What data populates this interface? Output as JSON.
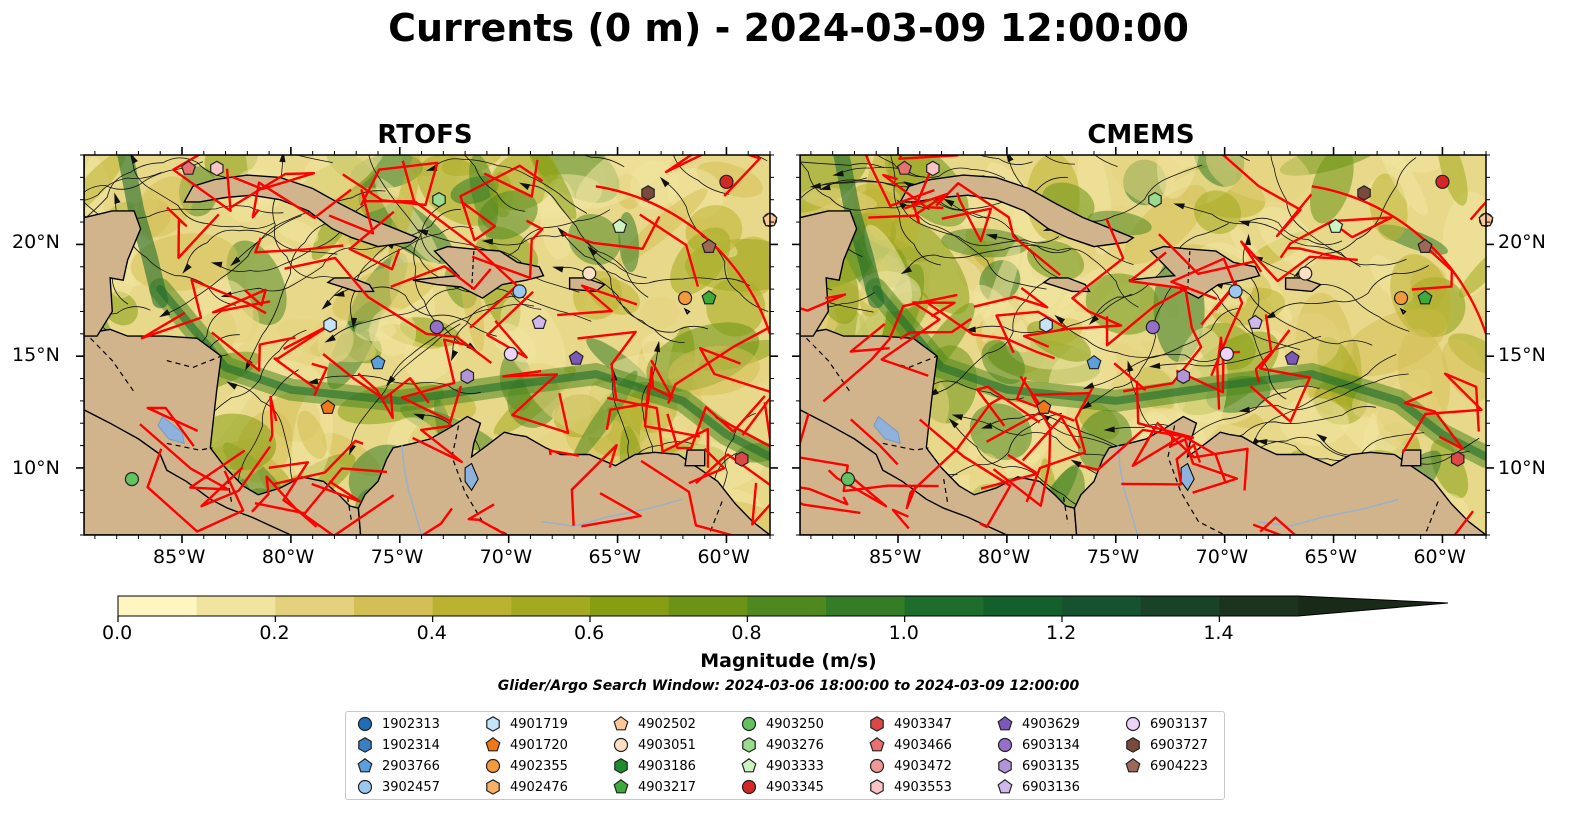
{
  "title": "Currents (0 m) - 2024-03-09 12:00:00",
  "panels": [
    {
      "title": "RTOFS"
    },
    {
      "title": "CMEMS"
    }
  ],
  "colors": {
    "land": "#d2b48c",
    "lake": "#8fb2dc",
    "tracks": "#ff0000",
    "ocean_low": "#fff7bc",
    "ocean_mid": "#8aa31c",
    "ocean_high": "#0f5a2b"
  },
  "colorbar": {
    "label": "Magnitude (m/s)",
    "ticks": [
      "0.0",
      "0.2",
      "0.4",
      "0.6",
      "0.8",
      "1.0",
      "1.2",
      "1.4"
    ],
    "range": [
      0.0,
      1.5
    ],
    "extend": "max",
    "bin_colors": [
      "#fff5c0",
      "#f1e3a0",
      "#e4d17e",
      "#d4bf55",
      "#bcb232",
      "#a3aa1f",
      "#879e12",
      "#6c9314",
      "#508820",
      "#357c26",
      "#1f6d2c",
      "#14602d",
      "#175230",
      "#1a4229",
      "#1c3320",
      "#1a2a18"
    ]
  },
  "search_window": "Glider/Argo Search Window: 2024-03-06 18:00:00 to 2024-03-09 12:00:00",
  "chart_data": {
    "type": "map",
    "lon_range": [
      -89.5,
      -58
    ],
    "lat_range": [
      7,
      24
    ],
    "x_ticks": [
      "85°W",
      "80°W",
      "75°W",
      "70°W",
      "65°W",
      "60°W"
    ],
    "y_ticks": [
      "20°N",
      "15°N",
      "10°N"
    ],
    "floats": [
      {
        "id": "1902313",
        "marker": "circle",
        "color": "#1f6db5",
        "lon": -58,
        "lat": 21.1
      },
      {
        "id": "1902314",
        "marker": "hexagon",
        "color": "#3a7fc4"
      },
      {
        "id": "2903766",
        "marker": "pentagon",
        "color": "#5a9fde",
        "lon": -76,
        "lat": 14.7
      },
      {
        "id": "3902457",
        "marker": "circle",
        "color": "#9cc8f0",
        "lon": -69.5,
        "lat": 17.9
      },
      {
        "id": "4901719",
        "marker": "hexagon",
        "color": "#c6e4f8",
        "lon": -78.2,
        "lat": 16.4
      },
      {
        "id": "4901720",
        "marker": "pentagon",
        "color": "#f07818",
        "lon": -78.3,
        "lat": 12.7
      },
      {
        "id": "4902355",
        "marker": "circle",
        "color": "#f59a3c",
        "lon": -61.9,
        "lat": 17.6
      },
      {
        "id": "4902476",
        "marker": "hexagon",
        "color": "#f8b068"
      },
      {
        "id": "4902502",
        "marker": "pentagon",
        "color": "#fbc89a",
        "lon": -58,
        "lat": 21.1
      },
      {
        "id": "4903051",
        "marker": "circle",
        "color": "#fde0c4",
        "lon": -66.3,
        "lat": 18.7
      },
      {
        "id": "4903186",
        "marker": "hexagon",
        "color": "#1f8c2c"
      },
      {
        "id": "4903217",
        "marker": "pentagon",
        "color": "#3daa3a",
        "lon": -60.8,
        "lat": 17.6
      },
      {
        "id": "4903250",
        "marker": "circle",
        "color": "#64c060",
        "lon": -87.3,
        "lat": 9.5
      },
      {
        "id": "4903276",
        "marker": "hexagon",
        "color": "#98dc8e",
        "lon": -73.2,
        "lat": 22.0
      },
      {
        "id": "4903333",
        "marker": "pentagon",
        "color": "#cdf3c3",
        "lon": -64.9,
        "lat": 20.8
      },
      {
        "id": "4903345",
        "marker": "circle",
        "color": "#d42828",
        "lon": -60.0,
        "lat": 22.8
      },
      {
        "id": "4903347",
        "marker": "hexagon",
        "color": "#dc4848",
        "lon": -59.3,
        "lat": 10.4
      },
      {
        "id": "4903466",
        "marker": "pentagon",
        "color": "#e87070",
        "lon": -84.7,
        "lat": 23.4
      },
      {
        "id": "4903472",
        "marker": "circle",
        "color": "#f09898"
      },
      {
        "id": "4903553",
        "marker": "hexagon",
        "color": "#f8c4c4",
        "lon": -83.4,
        "lat": 23.4
      },
      {
        "id": "4903629",
        "marker": "pentagon",
        "color": "#7c58b8",
        "lon": -66.9,
        "lat": 14.9
      },
      {
        "id": "6903134",
        "marker": "circle",
        "color": "#9670c8",
        "lon": -73.3,
        "lat": 16.3
      },
      {
        "id": "6903135",
        "marker": "hexagon",
        "color": "#b494d8",
        "lon": -71.9,
        "lat": 14.1
      },
      {
        "id": "6903136",
        "marker": "pentagon",
        "color": "#d0b8ec",
        "lon": -68.6,
        "lat": 16.5
      },
      {
        "id": "6903137",
        "marker": "circle",
        "color": "#ecd4f8",
        "lon": -69.9,
        "lat": 15.1
      },
      {
        "id": "6903727",
        "marker": "hexagon",
        "color": "#7a4a3c",
        "lon": -63.6,
        "lat": 22.3
      },
      {
        "id": "6904223",
        "marker": "pentagon",
        "color": "#9c6858",
        "lon": -60.8,
        "lat": 19.9
      }
    ]
  }
}
